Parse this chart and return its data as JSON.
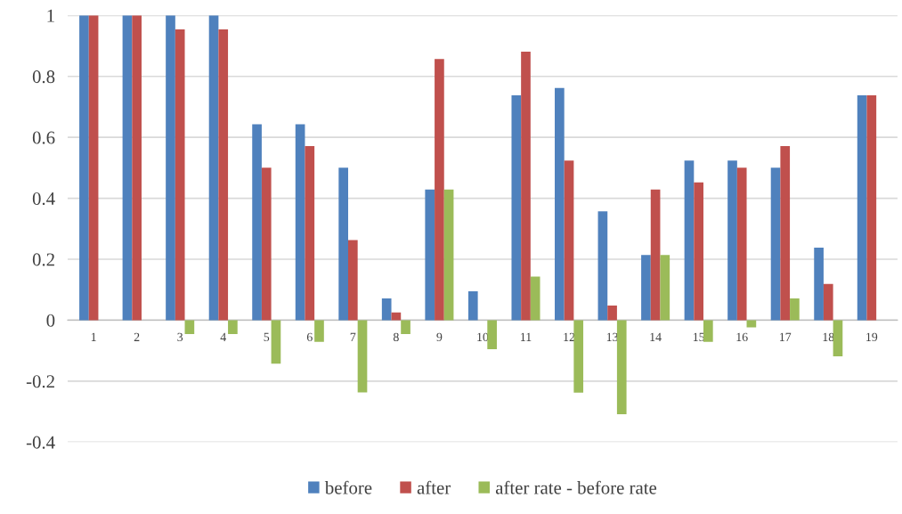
{
  "chart_data": {
    "type": "bar",
    "categories": [
      "1",
      "2",
      "3",
      "4",
      "5",
      "6",
      "7",
      "8",
      "9",
      "10",
      "11",
      "12",
      "13",
      "14",
      "15",
      "16",
      "17",
      "18",
      "19"
    ],
    "series": [
      {
        "name": "before",
        "color": "#4f81bd",
        "values": [
          1,
          1,
          1,
          1,
          0.643,
          0.643,
          0.5,
          0.071,
          0.429,
          0.095,
          0.738,
          0.762,
          0.357,
          0.214,
          0.524,
          0.524,
          0.5,
          0.238,
          0.738
        ]
      },
      {
        "name": "after",
        "color": "#c0504d",
        "values": [
          1,
          1,
          0.954,
          0.954,
          0.5,
          0.571,
          0.263,
          0.025,
          0.857,
          0,
          0.881,
          0.524,
          0.048,
          0.429,
          0.452,
          0.5,
          0.571,
          0.119,
          0.738
        ]
      },
      {
        "name": "after rate - before rate",
        "color": "#9bbb59",
        "values": [
          0,
          0,
          -0.046,
          -0.046,
          -0.143,
          -0.071,
          -0.237,
          -0.046,
          0.429,
          -0.095,
          0.143,
          -0.238,
          -0.309,
          0.214,
          -0.071,
          -0.024,
          0.071,
          -0.119,
          0
        ]
      }
    ],
    "ylim": [
      -0.4,
      1
    ],
    "yticks": [
      -0.4,
      -0.2,
      0,
      0.2,
      0.4,
      0.6,
      0.8,
      1
    ],
    "grid": "y",
    "legend": "bottom"
  }
}
